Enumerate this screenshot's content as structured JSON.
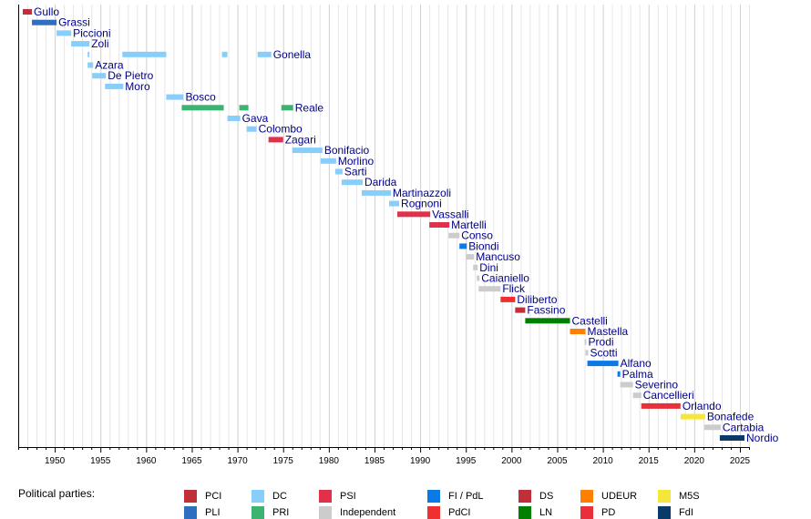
{
  "legend_title": "Political parties:",
  "chart_data": {
    "type": "gantt",
    "x_min": 1946,
    "x_max": 2026,
    "x_ticks": [
      "1950",
      "1955",
      "1960",
      "1965",
      "1970",
      "1975",
      "1980",
      "1985",
      "1990",
      "1995",
      "2000",
      "2005",
      "2010",
      "2015",
      "2020",
      "2025"
    ],
    "grid": true,
    "parties": [
      {
        "key": "PCI",
        "label": "PCI",
        "color": "#c0303a"
      },
      {
        "key": "PLI",
        "label": "PLI",
        "color": "#2e6fbf"
      },
      {
        "key": "DC",
        "label": "DC",
        "color": "#87cefa"
      },
      {
        "key": "PRI",
        "label": "PRI",
        "color": "#3cb371"
      },
      {
        "key": "PSI",
        "label": "PSI",
        "color": "#e0304a"
      },
      {
        "key": "IND",
        "label": "Independent",
        "color": "#cccccc"
      },
      {
        "key": "FI",
        "label": "FI / PdL",
        "color": "#0a7ae6"
      },
      {
        "key": "PdCI",
        "label": "PdCI",
        "color": "#f03030"
      },
      {
        "key": "DS",
        "label": "DS",
        "color": "#c0303a"
      },
      {
        "key": "LN",
        "label": "LN",
        "color": "#008000"
      },
      {
        "key": "UDEUR",
        "label": "UDEUR",
        "color": "#ff8000"
      },
      {
        "key": "PD",
        "label": "PD",
        "color": "#e8303a"
      },
      {
        "key": "M5S",
        "label": "M5S",
        "color": "#f5e63a"
      },
      {
        "key": "FdI",
        "label": "FdI",
        "color": "#0a3a6a"
      }
    ],
    "ministers": [
      {
        "name": "Gullo",
        "label_after": 0,
        "terms": [
          {
            "start": 1946.5,
            "end": 1947.5,
            "party": "PCI"
          }
        ]
      },
      {
        "name": "Grassi",
        "label_after": 0,
        "terms": [
          {
            "start": 1947.5,
            "end": 1950.2,
            "party": "PLI"
          }
        ]
      },
      {
        "name": "Piccioni",
        "label_after": 0,
        "terms": [
          {
            "start": 1950.2,
            "end": 1951.8,
            "party": "DC"
          }
        ]
      },
      {
        "name": "Zoli",
        "label_after": 0,
        "terms": [
          {
            "start": 1951.8,
            "end": 1953.8,
            "party": "DC"
          }
        ]
      },
      {
        "name": "Gonella",
        "label_after": 3,
        "terms": [
          {
            "start": 1953.6,
            "end": 1953.8,
            "party": "DC"
          },
          {
            "start": 1957.4,
            "end": 1962.2,
            "party": "DC"
          },
          {
            "start": 1968.3,
            "end": 1968.9,
            "party": "DC"
          },
          {
            "start": 1972.2,
            "end": 1973.7,
            "party": "DC"
          }
        ]
      },
      {
        "name": "Azara",
        "label_after": 0,
        "terms": [
          {
            "start": 1953.6,
            "end": 1954.2,
            "party": "DC"
          }
        ]
      },
      {
        "name": "De Pietro",
        "label_after": 0,
        "terms": [
          {
            "start": 1954.1,
            "end": 1955.6,
            "party": "DC"
          }
        ]
      },
      {
        "name": "Moro",
        "label_after": 0,
        "terms": [
          {
            "start": 1955.5,
            "end": 1957.5,
            "party": "DC"
          }
        ]
      },
      {
        "name": "Bosco",
        "label_after": 0,
        "terms": [
          {
            "start": 1962.2,
            "end": 1964.1,
            "party": "DC"
          }
        ]
      },
      {
        "name": "Reale",
        "label_after": 2,
        "terms": [
          {
            "start": 1963.9,
            "end": 1968.5,
            "party": "PRI"
          },
          {
            "start": 1970.2,
            "end": 1971.2,
            "party": "PRI"
          },
          {
            "start": 1974.8,
            "end": 1976.1,
            "party": "PRI"
          }
        ]
      },
      {
        "name": "Gava",
        "label_after": 0,
        "terms": [
          {
            "start": 1968.9,
            "end": 1970.3,
            "party": "DC"
          }
        ]
      },
      {
        "name": "Colombo",
        "label_after": 0,
        "terms": [
          {
            "start": 1971.0,
            "end": 1972.1,
            "party": "DC"
          }
        ]
      },
      {
        "name": "Zagari",
        "label_after": 0,
        "terms": [
          {
            "start": 1973.4,
            "end": 1975.0,
            "party": "PSI"
          }
        ]
      },
      {
        "name": "Bonifacio",
        "label_after": 0,
        "terms": [
          {
            "start": 1976.0,
            "end": 1979.3,
            "party": "DC"
          }
        ]
      },
      {
        "name": "Morlino",
        "label_after": 0,
        "terms": [
          {
            "start": 1979.1,
            "end": 1980.8,
            "party": "DC"
          }
        ]
      },
      {
        "name": "Sarti",
        "label_after": 0,
        "terms": [
          {
            "start": 1980.7,
            "end": 1981.5,
            "party": "DC"
          }
        ]
      },
      {
        "name": "Darida",
        "label_after": 0,
        "terms": [
          {
            "start": 1981.4,
            "end": 1983.7,
            "party": "DC"
          }
        ]
      },
      {
        "name": "Martinazzoli",
        "label_after": 0,
        "terms": [
          {
            "start": 1983.6,
            "end": 1986.8,
            "party": "DC"
          }
        ]
      },
      {
        "name": "Rognoni",
        "label_after": 0,
        "terms": [
          {
            "start": 1986.6,
            "end": 1987.7,
            "party": "DC"
          }
        ]
      },
      {
        "name": "Vassalli",
        "label_after": 0,
        "terms": [
          {
            "start": 1987.5,
            "end": 1991.1,
            "party": "PSI"
          }
        ]
      },
      {
        "name": "Martelli",
        "label_after": 0,
        "terms": [
          {
            "start": 1991.0,
            "end": 1993.2,
            "party": "PSI"
          }
        ]
      },
      {
        "name": "Conso",
        "label_after": 0,
        "terms": [
          {
            "start": 1993.1,
            "end": 1994.3,
            "party": "IND"
          }
        ]
      },
      {
        "name": "Biondi",
        "label_after": 0,
        "terms": [
          {
            "start": 1994.3,
            "end": 1995.1,
            "party": "FI"
          }
        ]
      },
      {
        "name": "Mancuso",
        "label_after": 0,
        "terms": [
          {
            "start": 1995.0,
            "end": 1995.9,
            "party": "IND"
          }
        ]
      },
      {
        "name": "Dini",
        "label_after": 0,
        "terms": [
          {
            "start": 1995.8,
            "end": 1996.3,
            "party": "IND"
          }
        ]
      },
      {
        "name": "Caianiello",
        "label_after": 0,
        "terms": [
          {
            "start": 1996.2,
            "end": 1996.5,
            "party": "IND"
          }
        ]
      },
      {
        "name": "Flick",
        "label_after": 0,
        "terms": [
          {
            "start": 1996.4,
            "end": 1998.8,
            "party": "IND"
          }
        ]
      },
      {
        "name": "Diliberto",
        "label_after": 0,
        "terms": [
          {
            "start": 1998.8,
            "end": 2000.4,
            "party": "PdCI"
          }
        ]
      },
      {
        "name": "Fassino",
        "label_after": 0,
        "terms": [
          {
            "start": 2000.4,
            "end": 2001.5,
            "party": "DS"
          }
        ]
      },
      {
        "name": "Castelli",
        "label_after": 0,
        "terms": [
          {
            "start": 2001.5,
            "end": 2006.4,
            "party": "LN"
          }
        ]
      },
      {
        "name": "Mastella",
        "label_after": 0,
        "terms": [
          {
            "start": 2006.4,
            "end": 2008.1,
            "party": "UDEUR"
          }
        ]
      },
      {
        "name": "Prodi",
        "label_after": 0,
        "terms": [
          {
            "start": 2008.0,
            "end": 2008.2,
            "party": "IND"
          }
        ]
      },
      {
        "name": "Scotti",
        "label_after": 0,
        "terms": [
          {
            "start": 2008.1,
            "end": 2008.4,
            "party": "IND"
          }
        ]
      },
      {
        "name": "Alfano",
        "label_after": 0,
        "terms": [
          {
            "start": 2008.3,
            "end": 2011.7,
            "party": "FI"
          }
        ]
      },
      {
        "name": "Palma",
        "label_after": 0,
        "terms": [
          {
            "start": 2011.6,
            "end": 2011.9,
            "party": "FI"
          }
        ]
      },
      {
        "name": "Severino",
        "label_after": 0,
        "terms": [
          {
            "start": 2011.9,
            "end": 2013.3,
            "party": "IND"
          }
        ]
      },
      {
        "name": "Cancellieri",
        "label_after": 0,
        "terms": [
          {
            "start": 2013.3,
            "end": 2014.2,
            "party": "IND"
          }
        ]
      },
      {
        "name": "Orlando",
        "label_after": 0,
        "terms": [
          {
            "start": 2014.2,
            "end": 2018.5,
            "party": "PD"
          }
        ]
      },
      {
        "name": "Bonafede",
        "label_after": 0,
        "terms": [
          {
            "start": 2018.5,
            "end": 2021.2,
            "party": "M5S"
          }
        ]
      },
      {
        "name": "Cartabia",
        "label_after": 0,
        "terms": [
          {
            "start": 2021.1,
            "end": 2022.9,
            "party": "IND"
          }
        ]
      },
      {
        "name": "Nordio",
        "label_after": 0,
        "terms": [
          {
            "start": 2022.8,
            "end": 2025.5,
            "party": "FdI"
          }
        ]
      }
    ]
  }
}
